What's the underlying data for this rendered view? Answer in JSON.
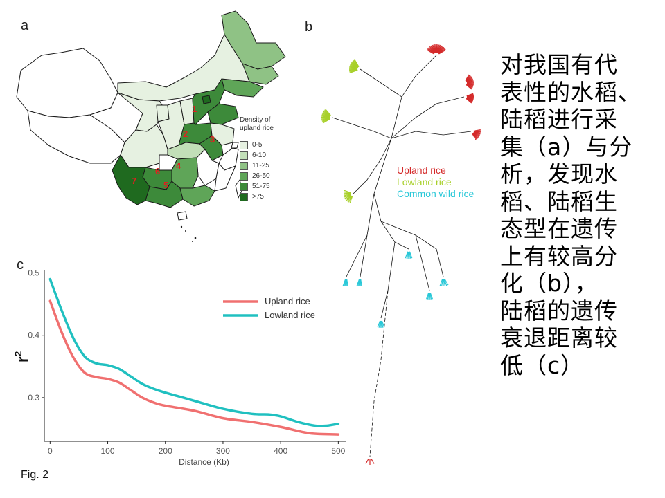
{
  "panels": {
    "a": "a",
    "b": "b",
    "c": "c"
  },
  "map_panel": {
    "legend_title_lines": [
      "Density of",
      "upland rice"
    ],
    "legend": [
      {
        "label": "0-5",
        "color": "#e6f1e1"
      },
      {
        "label": "6-10",
        "color": "#c2dfb8"
      },
      {
        "label": "11-25",
        "color": "#8fc285"
      },
      {
        "label": "26-50",
        "color": "#5fa558"
      },
      {
        "label": "51-75",
        "color": "#3d8a3a"
      },
      {
        "label": ">75",
        "color": "#1f6a1f"
      }
    ],
    "region_numbers": [
      "1",
      "2",
      "3",
      "4",
      "5",
      "6",
      "7"
    ],
    "number_color": "#e02020"
  },
  "tree_panel": {
    "legend": [
      {
        "label": "Upland rice",
        "color": "#d42a2a"
      },
      {
        "label": "Lowland rice",
        "color": "#a8d02a"
      },
      {
        "label": "Common wild rice",
        "color": "#2ac8d8"
      }
    ]
  },
  "chart_data": {
    "type": "line",
    "ylabel": "r",
    "ylabel_sup": "2",
    "xlabel": "Distance (Kb)",
    "xlim": [
      -10,
      520
    ],
    "ylim": [
      0.23,
      0.505
    ],
    "x_ticks": [
      0,
      100,
      200,
      300,
      400,
      500
    ],
    "y_ticks": [
      0.3,
      0.4,
      0.5
    ],
    "legend_position": "top-right",
    "series": [
      {
        "name": "Upland rice",
        "color": "#f07070",
        "x": [
          0,
          20,
          40,
          60,
          80,
          100,
          120,
          140,
          160,
          180,
          200,
          250,
          300,
          350,
          400,
          450,
          500
        ],
        "y": [
          0.455,
          0.405,
          0.365,
          0.34,
          0.333,
          0.33,
          0.324,
          0.312,
          0.3,
          0.292,
          0.287,
          0.279,
          0.267,
          0.261,
          0.253,
          0.243,
          0.241
        ]
      },
      {
        "name": "Lowland rice",
        "color": "#20c0c0",
        "x": [
          0,
          20,
          40,
          60,
          80,
          100,
          120,
          140,
          160,
          180,
          200,
          250,
          300,
          350,
          380,
          400,
          430,
          460,
          480,
          500
        ],
        "y": [
          0.49,
          0.44,
          0.396,
          0.366,
          0.355,
          0.352,
          0.346,
          0.334,
          0.322,
          0.314,
          0.308,
          0.295,
          0.282,
          0.274,
          0.273,
          0.27,
          0.261,
          0.255,
          0.255,
          0.258
        ]
      }
    ]
  },
  "caption_lines": [
    "对我国有代",
    "表性的水稻、",
    "陆稻进行采",
    "集（a）与分",
    "析，发现水",
    "稻、陆稻生",
    "态型在遗传",
    "上有较高分",
    "化（b），",
    "陆稻的遗传",
    "衰退距离较",
    "低（c）"
  ],
  "figure_label": "Fig. 2"
}
